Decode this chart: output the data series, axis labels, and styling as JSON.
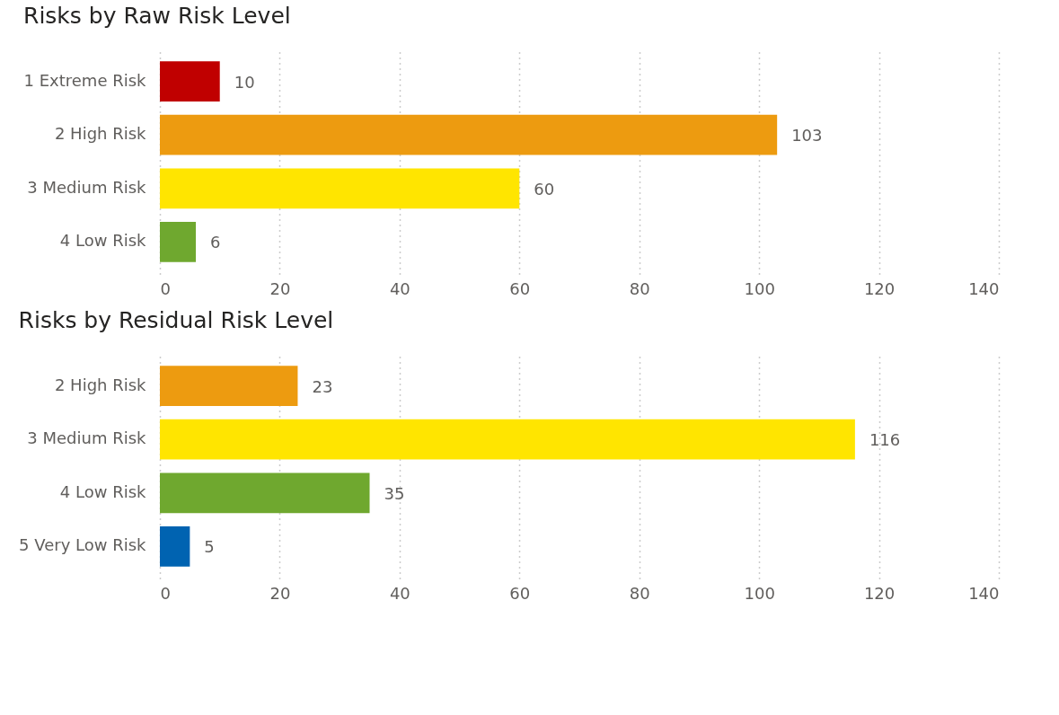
{
  "chart_data": [
    {
      "type": "bar",
      "orientation": "horizontal",
      "title": "Risks by Raw Risk Level",
      "categories": [
        "1 Extreme Risk",
        "2 High Risk",
        "3 Medium Risk",
        "4 Low Risk"
      ],
      "values": [
        10,
        103,
        60,
        6
      ],
      "colors": [
        "#c00000",
        "#ed9b10",
        "#ffe500",
        "#6fa82f"
      ],
      "xlim": [
        0,
        140
      ],
      "xticks": [
        0,
        20,
        40,
        60,
        80,
        100,
        120,
        140
      ],
      "grid": "x",
      "data_labels": true
    },
    {
      "type": "bar",
      "orientation": "horizontal",
      "title": "Risks by Residual Risk Level",
      "categories": [
        "2 High Risk",
        "3 Medium Risk",
        "4 Low Risk",
        "5 Very Low Risk"
      ],
      "values": [
        23,
        116,
        35,
        5
      ],
      "colors": [
        "#ed9b10",
        "#ffe500",
        "#6fa82f",
        "#0063b1"
      ],
      "xlim": [
        0,
        140
      ],
      "xticks": [
        0,
        20,
        40,
        60,
        80,
        100,
        120,
        140
      ],
      "grid": "x",
      "data_labels": true
    }
  ]
}
